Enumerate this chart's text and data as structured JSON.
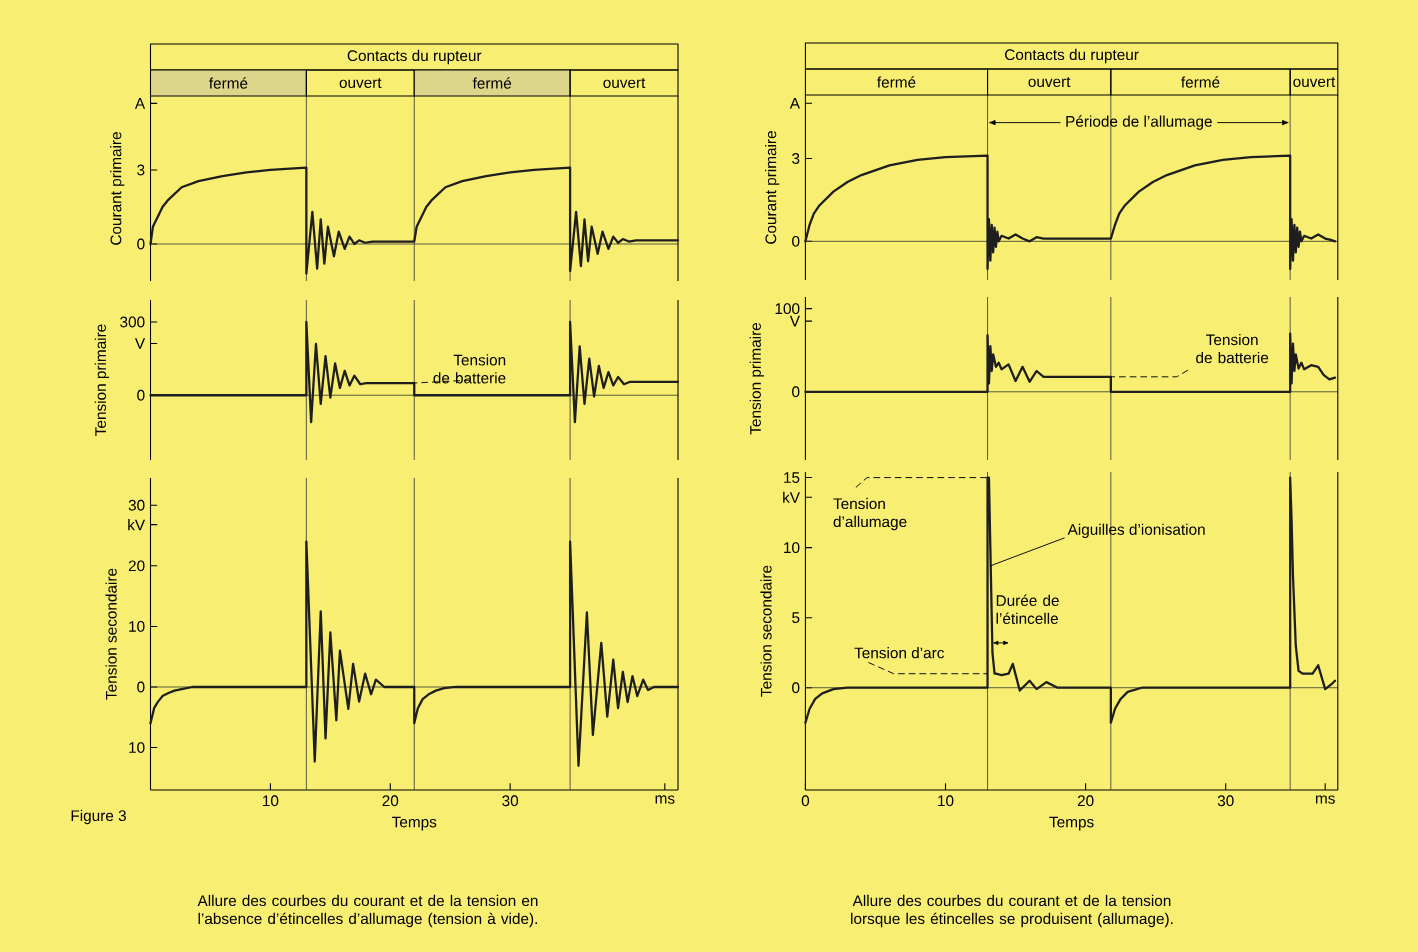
{
  "chart_data": [
    {
      "type": "line",
      "title": "Contacts du rupteur",
      "ylabel": "Courant primaire",
      "color": "#1e1e1e",
      "tick_labels": "y",
      "xlim": [
        0,
        44
      ],
      "ylim": [
        -1.5,
        6
      ],
      "yticks": [
        0,
        3,
        {
          "value": 5.7,
          "label": "A"
        }
      ],
      "x": [
        0,
        0.2,
        0.4,
        0.7,
        1,
        1.5,
        2.6,
        4,
        6,
        8,
        10,
        13,
        13,
        13.5,
        13.9,
        14.2,
        14.5,
        14.8,
        15.3,
        15.7,
        16.2,
        16.6,
        17.0,
        17.4,
        17.9,
        18.5,
        22,
        22,
        22.2,
        22.4,
        22.7,
        23,
        23.5,
        24.6,
        26,
        28,
        30,
        32,
        35,
        35,
        35.5,
        35.9,
        36.2,
        36.5,
        36.8,
        37.3,
        37.7,
        38.2,
        38.6,
        39.0,
        39.4,
        39.9,
        40.5,
        44
      ],
      "values": [
        0,
        0.7,
        0.9,
        1.2,
        1.5,
        1.8,
        2.3,
        2.55,
        2.75,
        2.9,
        3.0,
        3.1,
        -1.2,
        1.3,
        -1.0,
        1.0,
        -0.8,
        0.7,
        -0.5,
        0.5,
        -0.2,
        0.3,
        0.0,
        0.15,
        0.05,
        0.1,
        0.1,
        0.1,
        0.7,
        0.9,
        1.2,
        1.5,
        1.8,
        2.3,
        2.55,
        2.75,
        2.9,
        3.0,
        3.1,
        -1.1,
        1.3,
        -0.9,
        1.0,
        -0.7,
        0.7,
        -0.4,
        0.5,
        -0.2,
        0.3,
        0.05,
        0.2,
        0.1,
        0.15,
        0.15
      ],
      "ref_lines": [
        {
          "axis": "x",
          "value": 13
        },
        {
          "axis": "x",
          "value": 22
        },
        {
          "axis": "x",
          "value": 35
        },
        {
          "axis": "y",
          "value": 0
        }
      ],
      "annotations": [
        "fermé",
        "ouvert",
        "fermé",
        "ouvert"
      ]
    },
    {
      "type": "line",
      "ylabel": "Tension primaire",
      "color": "#1e1e1e",
      "tick_labels": "y",
      "xlim": [
        0,
        44
      ],
      "ylim": [
        -265,
        390
      ],
      "yticks": [
        0,
        300,
        {
          "value": 212,
          "label": "V"
        }
      ],
      "x": [
        0,
        13,
        13,
        13.4,
        13.8,
        14.2,
        14.6,
        15.0,
        15.4,
        15.8,
        16.2,
        16.6,
        17.0,
        17.5,
        18.0,
        22,
        22,
        35,
        35,
        35.4,
        35.8,
        36.2,
        36.6,
        37.0,
        37.4,
        37.8,
        38.2,
        38.6,
        39.0,
        39.5,
        40.0,
        44
      ],
      "values": [
        0,
        0,
        300,
        -110,
        210,
        -35,
        160,
        -10,
        130,
        30,
        100,
        40,
        80,
        45,
        50,
        50,
        0,
        0,
        300,
        -110,
        200,
        -35,
        150,
        -5,
        120,
        30,
        95,
        40,
        75,
        45,
        55,
        55
      ],
      "ref_lines": [
        {
          "axis": "x",
          "value": 13
        },
        {
          "axis": "x",
          "value": 22
        },
        {
          "axis": "x",
          "value": 35
        },
        {
          "axis": "y",
          "value": 0
        }
      ],
      "annotations": [
        {
          "text": "Tension de batterie",
          "x": 22,
          "y": 50
        }
      ]
    },
    {
      "type": "line",
      "ylabel": "Tension secondaire",
      "xlabel": "Temps",
      "color": "#1e1e1e",
      "xlim": [
        0,
        44
      ],
      "xticks": [
        10,
        20,
        30,
        {
          "value": 42.9,
          "label": "ms"
        }
      ],
      "ylim": [
        -17,
        34.5
      ],
      "yticks": [
        {
          "value": -10,
          "label": "10"
        },
        0,
        10,
        20,
        30,
        {
          "value": 26.8,
          "label": "kV"
        }
      ],
      "x": [
        0,
        0.3,
        0.6,
        1.0,
        1.5,
        2.0,
        2.7,
        3.5,
        13,
        13.0,
        13.7,
        14.2,
        14.6,
        15.0,
        15.5,
        15.8,
        16.5,
        16.9,
        17.4,
        17.9,
        18.4,
        18.8,
        19.5,
        22,
        22,
        22.3,
        22.7,
        23.2,
        23.8,
        24.5,
        25.5,
        35,
        35.0,
        35.7,
        36.4,
        36.9,
        37.6,
        38.1,
        38.6,
        39.0,
        39.4,
        39.8,
        40.2,
        40.6,
        41.1,
        41.5,
        42,
        44
      ],
      "values": [
        -6,
        -3.5,
        -2.5,
        -1.5,
        -1,
        -0.6,
        -0.3,
        0,
        0,
        24,
        -12.3,
        12.5,
        -8.5,
        9,
        -5.5,
        6,
        -3.6,
        3.8,
        -2.4,
        2.2,
        -1.2,
        1.2,
        0,
        0,
        -6,
        -3.5,
        -2,
        -1.2,
        -0.6,
        -0.2,
        0,
        0,
        24,
        -13,
        12.3,
        -7.9,
        7.3,
        -4.9,
        4.5,
        -3.5,
        2.5,
        -2.5,
        1.8,
        -1.5,
        1.2,
        -0.5,
        0,
        0
      ],
      "ref_lines": [
        {
          "axis": "x",
          "value": 13
        },
        {
          "axis": "x",
          "value": 22
        },
        {
          "axis": "x",
          "value": 35
        },
        {
          "axis": "y",
          "value": 0
        }
      ],
      "annotations": [
        "Figure 3",
        "Allure des courbes du courant et de la tension en l’absence d’étincelles d’allumage (tension à vide)."
      ]
    },
    {
      "type": "line",
      "title": "Contacts du rupteur",
      "ylabel": "Courant primaire",
      "color": "#1e1e1e",
      "tick_labels": "y",
      "xlim": [
        0,
        38
      ],
      "ylim": [
        -1.4,
        5.3
      ],
      "yticks": [
        0,
        3,
        {
          "value": 5.0,
          "label": "A"
        }
      ],
      "x": [
        0,
        0.3,
        0.6,
        1,
        2,
        3,
        4,
        6,
        8,
        10,
        13,
        13,
        13.1,
        13.2,
        13.3,
        13.4,
        13.5,
        13.6,
        13.7,
        13.8,
        14.0,
        14.5,
        15.0,
        15.5,
        16.0,
        16.5,
        17.0,
        21.8,
        21.8,
        22.1,
        22.4,
        22.8,
        23.8,
        24.8,
        25.8,
        27.8,
        29.8,
        31.8,
        34.6,
        34.6,
        34.7,
        34.8,
        34.9,
        35.0,
        35.1,
        35.2,
        35.3,
        35.4,
        35.6,
        36.1,
        36.6,
        37.1,
        37.5,
        37.8
      ],
      "values": [
        0,
        0.6,
        1.0,
        1.3,
        1.8,
        2.15,
        2.4,
        2.75,
        2.95,
        3.05,
        3.1,
        -1.0,
        0.8,
        -0.7,
        0.6,
        -0.4,
        0.5,
        -0.2,
        0.35,
        0,
        0.2,
        0.1,
        0.25,
        0.1,
        0.0,
        0.15,
        0.1,
        0.1,
        0.1,
        0.6,
        1.0,
        1.3,
        1.8,
        2.15,
        2.4,
        2.75,
        2.95,
        3.05,
        3.1,
        -1.0,
        0.8,
        -0.7,
        0.6,
        -0.4,
        0.5,
        -0.2,
        0.35,
        0,
        0.2,
        0.1,
        0.25,
        0.1,
        0.05,
        0.0
      ],
      "ref_lines": [
        {
          "axis": "x",
          "value": 13
        },
        {
          "axis": "x",
          "value": 21.8
        },
        {
          "axis": "x",
          "value": 34.6
        },
        {
          "axis": "y",
          "value": 0
        }
      ],
      "annotations": [
        "fermé",
        "ouvert",
        "fermé",
        "ouvert",
        {
          "text": "Période de l’allumage",
          "x": 13,
          "y": 4.3
        }
      ]
    },
    {
      "type": "line",
      "ylabel": "Tension primaire",
      "color": "#1e1e1e",
      "tick_labels": "y",
      "xlim": [
        0,
        38
      ],
      "ylim": [
        -82,
        114
      ],
      "yticks": [
        0,
        100,
        {
          "value": 85,
          "label": "V"
        }
      ],
      "x": [
        0,
        13,
        13,
        13.1,
        13.2,
        13.3,
        13.4,
        13.6,
        13.8,
        14.0,
        14.5,
        15.0,
        15.5,
        16.0,
        16.5,
        17.0,
        17.5,
        21.8,
        21.8,
        34.6,
        34.6,
        34.7,
        34.8,
        34.9,
        35.0,
        35.2,
        35.4,
        35.6,
        36.1,
        36.6,
        37.0,
        37.4,
        37.8
      ],
      "values": [
        0,
        0,
        68,
        10,
        55,
        25,
        45,
        30,
        35,
        27,
        33,
        13,
        30,
        12,
        25,
        18,
        18,
        18,
        0,
        0,
        70,
        10,
        58,
        25,
        45,
        28,
        35,
        27,
        32,
        30,
        20,
        15,
        17
      ],
      "ref_lines": [
        {
          "axis": "x",
          "value": 13
        },
        {
          "axis": "x",
          "value": 21.8
        },
        {
          "axis": "x",
          "value": 34.6
        },
        {
          "axis": "y",
          "value": 0
        }
      ],
      "annotations": [
        {
          "text": "Tension de batterie",
          "x": 21.8,
          "y": 18
        }
      ]
    },
    {
      "type": "line",
      "ylabel": "Tension secondaire",
      "xlabel": "Temps",
      "color": "#1e1e1e",
      "xlim": [
        0,
        38
      ],
      "xticks": [
        0,
        10,
        20,
        30,
        {
          "value": 37.1,
          "label": "ms"
        }
      ],
      "ylim": [
        -7.3,
        15.4
      ],
      "yticks": [
        0,
        5,
        10,
        15,
        {
          "value": 13.6,
          "label": "kV"
        }
      ],
      "x": [
        0,
        0.3,
        0.7,
        1.2,
        2,
        3,
        13,
        13.0,
        13.1,
        13.2,
        13.35,
        13.5,
        13.6,
        14.0,
        14.5,
        14.8,
        15.3,
        16.0,
        16.5,
        17.2,
        18,
        21.8,
        21.8,
        22.1,
        22.5,
        23,
        24,
        34.6,
        34.6,
        34.7,
        34.8,
        35.0,
        35.2,
        35.5,
        36.2,
        36.6,
        37.1,
        37.6,
        37.8
      ],
      "values": [
        -2.5,
        -1.5,
        -0.8,
        -0.4,
        -0.1,
        0,
        0,
        15,
        15,
        10,
        2.5,
        1.0,
        1.0,
        0.9,
        1.0,
        1.7,
        -0.2,
        0.5,
        -0.1,
        0.4,
        0,
        0,
        -2.5,
        -1.5,
        -0.8,
        -0.3,
        0,
        0,
        15,
        12,
        8,
        3,
        1.2,
        1.0,
        1.0,
        1.6,
        -0.1,
        0.3,
        0.5
      ],
      "ref_lines": [
        {
          "axis": "x",
          "value": 13
        },
        {
          "axis": "x",
          "value": 21.8
        },
        {
          "axis": "x",
          "value": 34.6
        },
        {
          "axis": "y",
          "value": 0
        }
      ],
      "annotations": [
        {
          "text": "Tension d’allumage",
          "x": 13,
          "y": 15
        },
        {
          "text": "Tension d’arc",
          "x": 13,
          "y": 1
        },
        {
          "text": "Aiguilles d’ionisation",
          "x": 13.2,
          "y": 8.7
        },
        "Durée de l’étincelle",
        "Allure des courbes du courant et de la tension lorsque les étincelles se produisent (allumage)."
      ]
    }
  ]
}
